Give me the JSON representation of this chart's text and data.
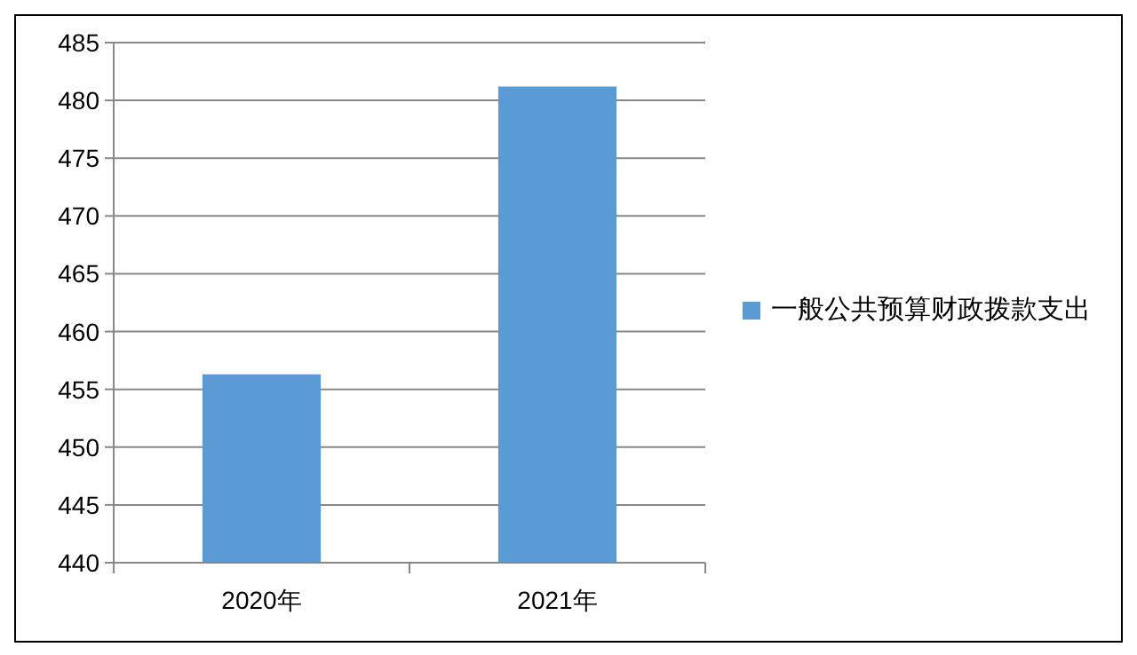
{
  "chart_data": {
    "type": "bar",
    "categories": [
      "2020年",
      "2021年"
    ],
    "series": [
      {
        "name": "一般公共预算财政拨款支出",
        "color": "#5b9bd5",
        "values": [
          456.3,
          481.2
        ]
      }
    ],
    "ylim": [
      440,
      485
    ],
    "yticks": [
      440,
      445,
      450,
      455,
      460,
      465,
      470,
      475,
      480,
      485
    ],
    "grid": "y",
    "legend": "right"
  }
}
